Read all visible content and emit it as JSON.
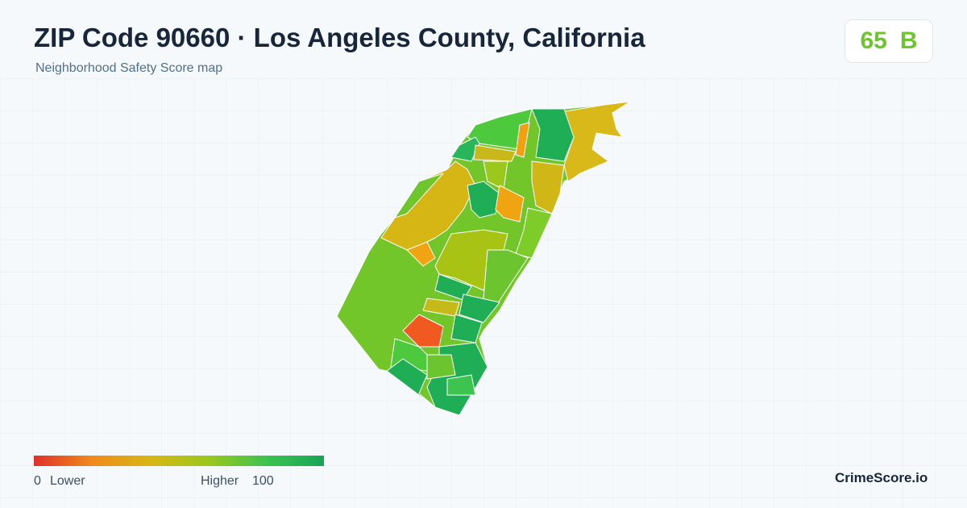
{
  "header": {
    "title": "ZIP Code 90660 · Los Angeles County, California",
    "subtitle": "Neighborhood Safety Score map"
  },
  "score": {
    "value": 65,
    "grade": "B"
  },
  "legend": {
    "min": 0,
    "min_label": "Lower",
    "max_label": "Higher",
    "max": 100
  },
  "brand": "CrimeScore.io"
}
